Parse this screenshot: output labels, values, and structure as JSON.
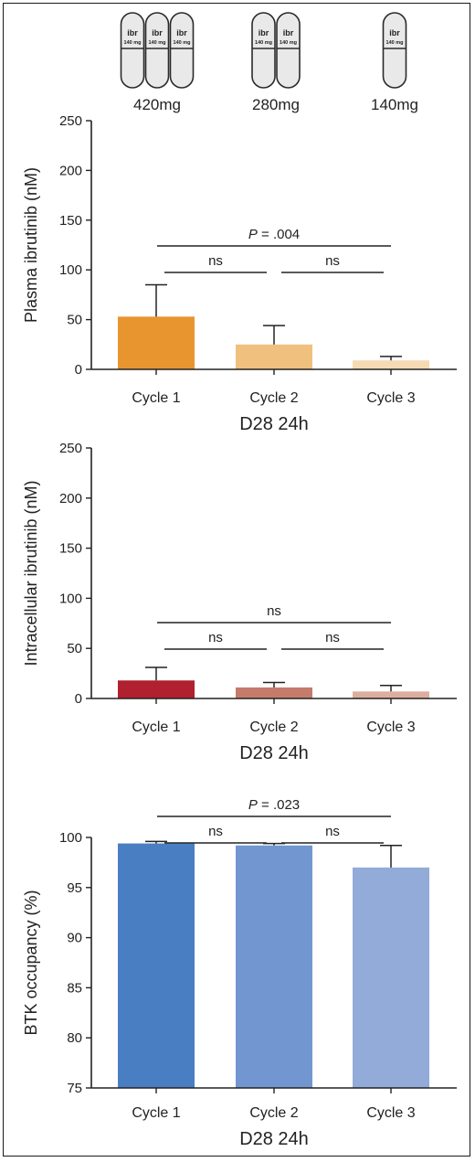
{
  "doses": [
    {
      "label": "420mg",
      "pills": 3
    },
    {
      "label": "280mg",
      "pills": 2
    },
    {
      "label": "140mg",
      "pills": 1
    }
  ],
  "pill_text": {
    "top": "ibr",
    "bottom": "140 mg"
  },
  "chart_data": [
    {
      "type": "bar",
      "categories": [
        "Cycle 1",
        "Cycle 2",
        "Cycle 3"
      ],
      "values": [
        53,
        25,
        9
      ],
      "error_upper": [
        85,
        44,
        13
      ],
      "colors": [
        "#e8952f",
        "#f0c07f",
        "#f5dab3"
      ],
      "ylabel": "Plasma ibrutinib (nM)",
      "xlabel": "D28 24h",
      "ylim": [
        0,
        250
      ],
      "yticks": [
        0,
        50,
        100,
        150,
        200,
        250
      ],
      "comparisons": [
        {
          "from": 0,
          "to": 1,
          "label": "ns"
        },
        {
          "from": 1,
          "to": 2,
          "label": "ns"
        },
        {
          "from": 0,
          "to": 2,
          "label_italic": "P",
          "label": " = .004"
        }
      ]
    },
    {
      "type": "bar",
      "categories": [
        "Cycle 1",
        "Cycle 2",
        "Cycle 3"
      ],
      "values": [
        18,
        11,
        7
      ],
      "error_upper": [
        31,
        16,
        13
      ],
      "colors": [
        "#b0202e",
        "#c47b6c",
        "#dcae9f"
      ],
      "ylabel": "Intracellular ibrutinib (nM)",
      "xlabel": "D28 24h",
      "ylim": [
        0,
        250
      ],
      "yticks": [
        0,
        50,
        100,
        150,
        200,
        250
      ],
      "comparisons": [
        {
          "from": 0,
          "to": 1,
          "label": "ns"
        },
        {
          "from": 1,
          "to": 2,
          "label": "ns"
        },
        {
          "from": 0,
          "to": 2,
          "label": "ns"
        }
      ]
    },
    {
      "type": "bar",
      "categories": [
        "Cycle 1",
        "Cycle 2",
        "Cycle 3"
      ],
      "values": [
        99.4,
        99.2,
        97.0
      ],
      "error_upper": [
        99.6,
        99.4,
        99.2
      ],
      "colors": [
        "#4a7ec2",
        "#7296cf",
        "#93abd8"
      ],
      "ylabel": "BTK occupancy (%)",
      "xlabel": "D28 24h",
      "ylim": [
        75,
        100
      ],
      "yticks": [
        75,
        80,
        85,
        90,
        95,
        100
      ],
      "comparisons": [
        {
          "from": 0,
          "to": 1,
          "label": "ns"
        },
        {
          "from": 1,
          "to": 2,
          "label": "ns"
        },
        {
          "from": 0,
          "to": 2,
          "label_italic": "P",
          "label": " = .023"
        }
      ]
    }
  ]
}
